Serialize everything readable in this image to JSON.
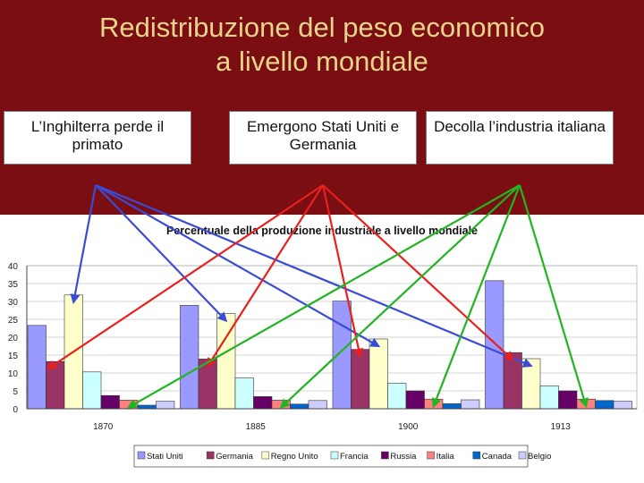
{
  "slide": {
    "title_line1": "Redistribuzione del peso economico",
    "title_line2": "a livello mondiale",
    "callouts": [
      {
        "text": "L’Inghilterra perde il primato"
      },
      {
        "text": "Emergono Stati Uniti e Germania"
      },
      {
        "text": "Decolla l’industria italiana"
      }
    ],
    "colors": {
      "background": "#7a0e12",
      "title": "#e8d48a",
      "arrow_uk": "#3a4bd6",
      "arrow_us_de": "#e8201e",
      "arrow_it": "#22b422"
    }
  },
  "chart_data": {
    "type": "bar",
    "title": "Percentuale della produzione industriale a livello mondiale",
    "categories": [
      "1870",
      "1885",
      "1900",
      "1913"
    ],
    "ylim": [
      0,
      40
    ],
    "yticks": [
      "0",
      "5",
      "10",
      "15",
      "20",
      "25",
      "30",
      "35",
      "40"
    ],
    "grid": true,
    "legend_position": "bottom",
    "series": [
      {
        "name": "Stati Uniti",
        "color": "#9999ff",
        "values": [
          23.3,
          28.9,
          30.1,
          35.8
        ]
      },
      {
        "name": "Germania",
        "color": "#993366",
        "values": [
          13.2,
          13.9,
          16.6,
          15.7
        ]
      },
      {
        "name": "Regno Unito",
        "color": "#ffffcc",
        "values": [
          31.8,
          26.6,
          19.5,
          14.0
        ]
      },
      {
        "name": "Francia",
        "color": "#ccffff",
        "values": [
          10.3,
          8.6,
          7.1,
          6.4
        ]
      },
      {
        "name": "Russia",
        "color": "#660066",
        "values": [
          3.7,
          3.4,
          5.0,
          5.0
        ]
      },
      {
        "name": "Italia",
        "color": "#ff8080",
        "values": [
          2.4,
          2.4,
          2.7,
          2.7
        ]
      },
      {
        "name": "Canada",
        "color": "#0066cc",
        "values": [
          1.0,
          1.3,
          1.4,
          2.3
        ]
      },
      {
        "name": "Belgio",
        "color": "#ccccff",
        "values": [
          2.1,
          2.3,
          2.5,
          2.1
        ]
      }
    ]
  }
}
